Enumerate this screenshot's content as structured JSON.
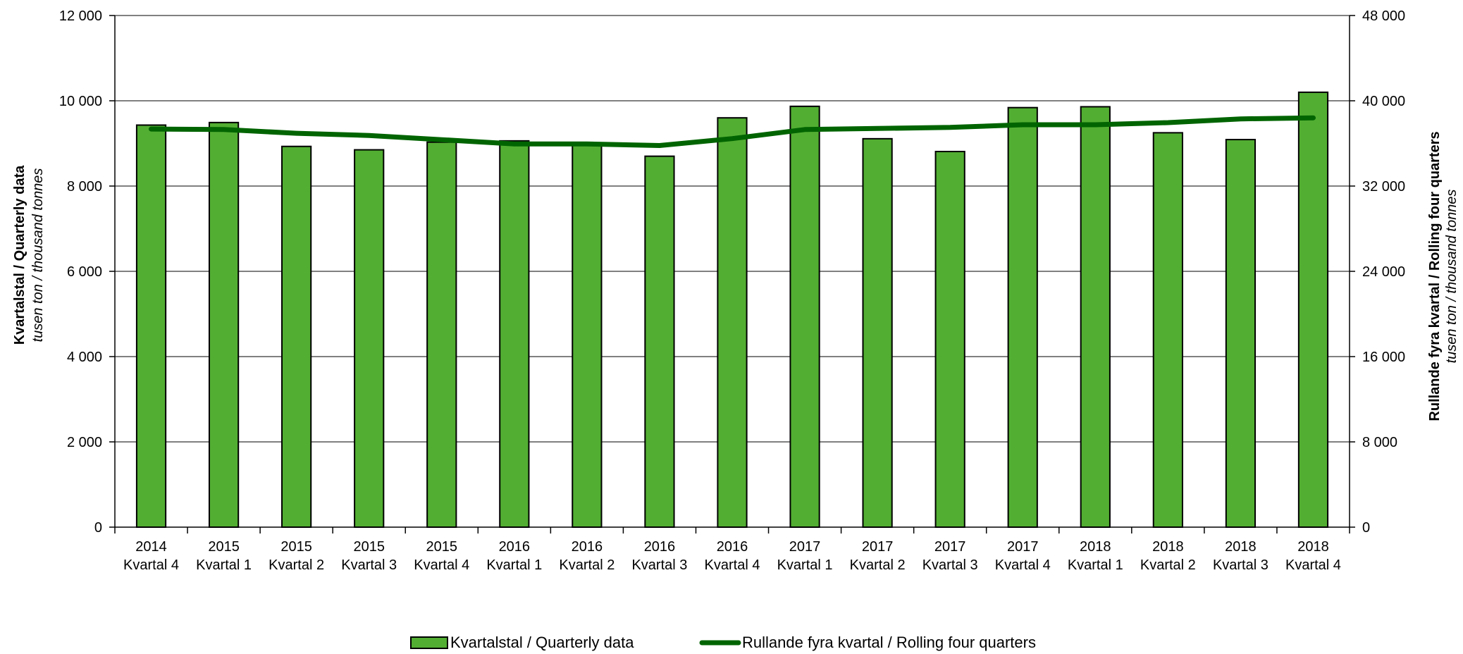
{
  "chart_data": {
    "type": "bar",
    "categories": [
      [
        "2014",
        "Kvartal 4"
      ],
      [
        "2015",
        "Kvartal 1"
      ],
      [
        "2015",
        "Kvartal 2"
      ],
      [
        "2015",
        "Kvartal 3"
      ],
      [
        "2015",
        "Kvartal 4"
      ],
      [
        "2016",
        "Kvartal 1"
      ],
      [
        "2016",
        "Kvartal 2"
      ],
      [
        "2016",
        "Kvartal 3"
      ],
      [
        "2016",
        "Kvartal 4"
      ],
      [
        "2017",
        "Kvartal 1"
      ],
      [
        "2017",
        "Kvartal 2"
      ],
      [
        "2017",
        "Kvartal 3"
      ],
      [
        "2017",
        "Kvartal 4"
      ],
      [
        "2018",
        "Kvartal 1"
      ],
      [
        "2018",
        "Kvartal 2"
      ],
      [
        "2018",
        "Kvartal 3"
      ],
      [
        "2018",
        "Kvartal 4"
      ]
    ],
    "series": [
      {
        "name": "Kvartalstal / Quarterly data",
        "type": "bar",
        "axis": "left",
        "color": "#52AE32",
        "values": [
          9430,
          9490,
          8930,
          8850,
          9030,
          9060,
          8990,
          8700,
          9600,
          9870,
          9110,
          8810,
          9840,
          9860,
          9250,
          9090,
          10200
        ]
      },
      {
        "name": "Rullande fyra kvartal / Rolling four quarters",
        "type": "line",
        "axis": "right",
        "color": "#006400",
        "values": [
          37350,
          37300,
          36950,
          36750,
          36350,
          35950,
          35950,
          35800,
          36450,
          37300,
          37400,
          37500,
          37750,
          37750,
          37950,
          38300,
          38400
        ]
      }
    ],
    "y_left": {
      "title": "Kvartalstal  /  Quarterly data",
      "subtitle": "tusen ton  / thousand tonnes",
      "ylim": [
        0,
        12000
      ],
      "ticks": [
        "0",
        "2 000",
        "4 000",
        "6 000",
        "8 000",
        "10 000",
        "12 000"
      ]
    },
    "y_right": {
      "title": "Rullande fyra kvartal  /  Rolling four quarters",
      "subtitle": "tusen ton  / thousand tonnes",
      "ylim": [
        0,
        48000
      ],
      "ticks": [
        "0",
        "8 000",
        "16 000",
        "24 000",
        "32 000",
        "40 000",
        "48 000"
      ]
    },
    "grid": true,
    "legend_position": "bottom-center"
  }
}
